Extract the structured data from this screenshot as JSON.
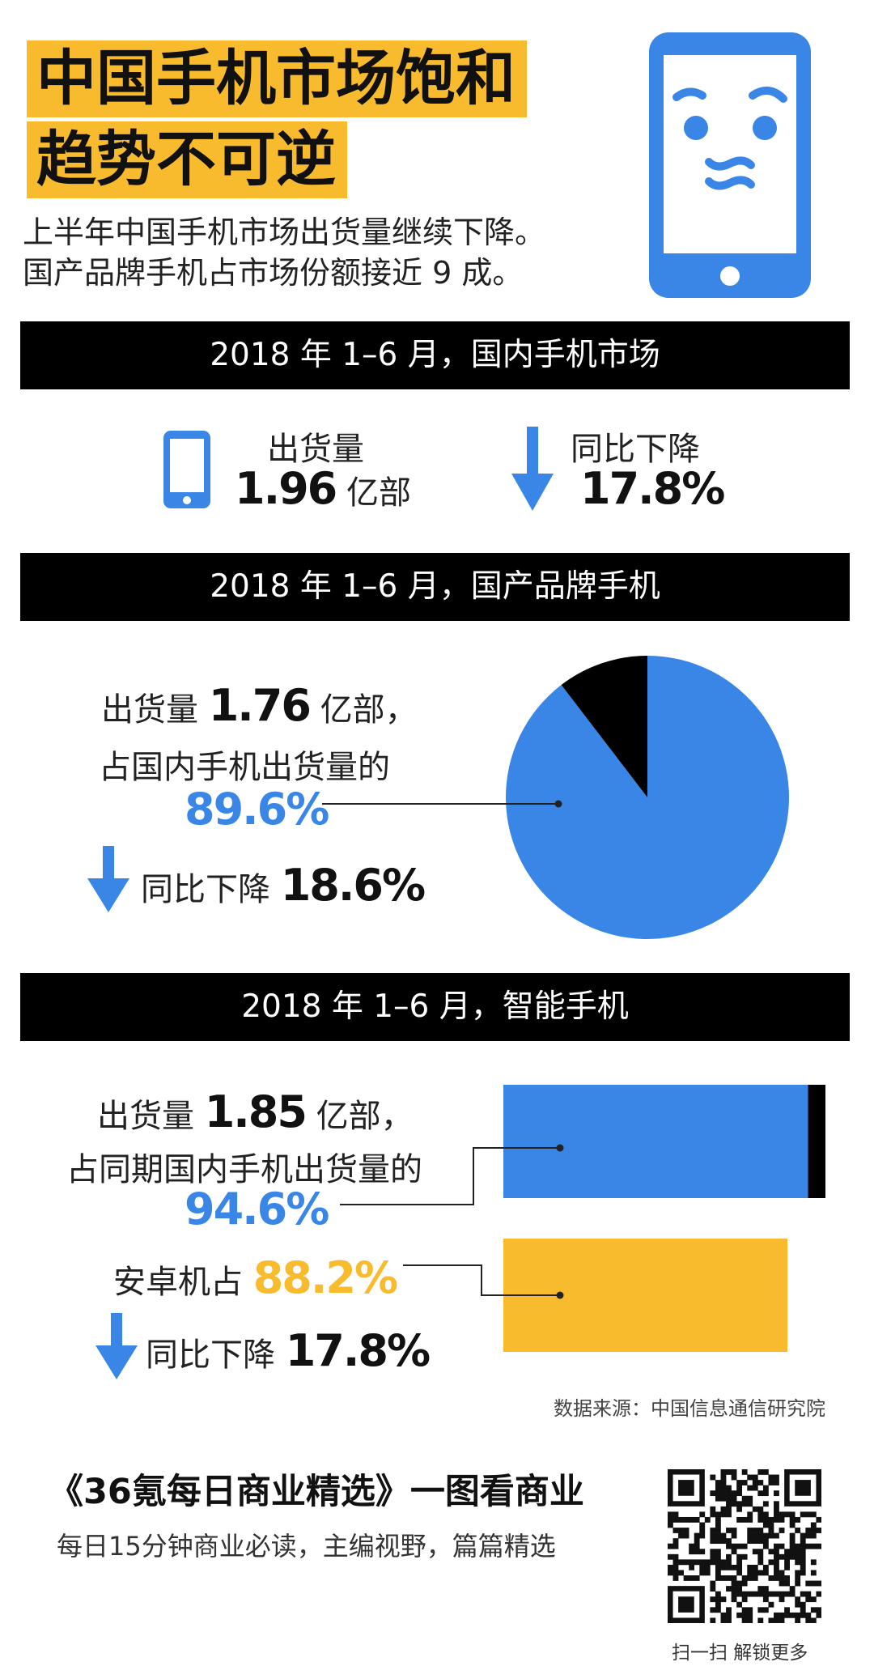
{
  "title": {
    "line1": "中国手机市场饱和",
    "line2": "趋势不可逆"
  },
  "subtitle": {
    "line1": "上半年中国手机市场出货量继续下降。",
    "line2": "国产品牌手机占市场份额接近 9 成。"
  },
  "section1": {
    "header": "2018 年 1–6 月，国内手机市场",
    "shipment_label": "出货量",
    "shipment_value": "1.96",
    "shipment_unit": "亿部",
    "decline_label": "同比下降",
    "decline_value": "17.8%"
  },
  "section2": {
    "header": "2018 年 1–6 月，国产品牌手机",
    "line1_prefix": "出货量",
    "line1_value": "1.76",
    "line1_suffix": "亿部，",
    "line2": "占国内手机出货量的",
    "share_value": "89.6%",
    "decline_label": "同比下降",
    "decline_value": "18.6%"
  },
  "section3": {
    "header": "2018 年 1–6 月，智能手机",
    "line1_prefix": "出货量",
    "line1_value": "1.85",
    "line1_suffix": "亿部，",
    "line2": "占同期国内手机出货量的",
    "share_value": "94.6%",
    "android_label": "安卓机占",
    "android_value": "88.2%",
    "decline_label": "同比下降",
    "decline_value": "17.8%"
  },
  "source": "数据来源：中国信息通信研究院",
  "footer": {
    "title": "《36氪每日商业精选》一图看商业",
    "subtitle": "每日15分钟商业必读，主编视野，篇篇精选",
    "qr_caption": "扫一扫 解锁更多"
  },
  "colors": {
    "blue": "#3a86e6",
    "gold": "#f9bb2e",
    "black": "#000000"
  },
  "chart_data": [
    {
      "type": "pie",
      "labels": [
        "",
        ""
      ],
      "values": [
        89.6,
        10.4
      ],
      "colors": [
        "#3a86e6",
        "#000000"
      ]
    },
    {
      "type": "bar",
      "orientation": "horizontal",
      "categories": [
        "",
        ""
      ],
      "values": [
        94.6,
        88.2
      ],
      "colors": [
        "#3a86e6",
        "#f9bb2e"
      ],
      "xlim": [
        0,
        100
      ]
    }
  ]
}
